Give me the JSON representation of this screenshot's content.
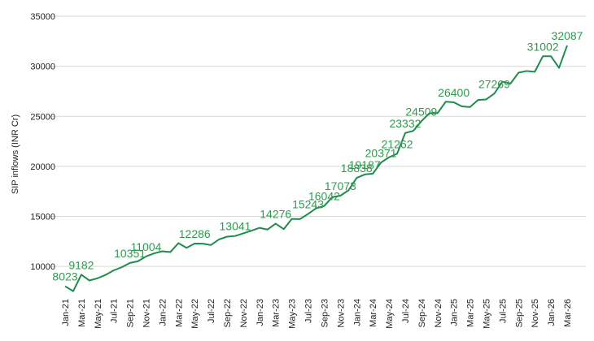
{
  "chart_data": {
    "type": "line",
    "y_label": "SIP inflows (INR Cr)",
    "categories": [
      "Jan-21",
      null,
      "Mar-21",
      null,
      "May-21",
      null,
      "Jul-21",
      null,
      "Sep-21",
      null,
      "Nov-21",
      null,
      "Jan-22",
      null,
      "Mar-22",
      null,
      "May-22",
      null,
      "Jul-22",
      null,
      "Sep-22",
      null,
      "Nov-22",
      null,
      "Jan-23",
      null,
      "Mar-23",
      null,
      "May-23",
      null,
      "Jul-23",
      null,
      "Sep-23",
      null,
      "Nov-23",
      null,
      "Jan-24",
      null,
      "Mar-24",
      null,
      "May-24",
      null,
      "Jul-24",
      null,
      "Sep-24",
      null,
      "Nov-24",
      null,
      "Jan-25",
      null,
      "Mar-25",
      null,
      "May-25",
      null,
      "Jul-25",
      null,
      "Sep-25",
      null,
      "Nov-25",
      null,
      "Jan-26",
      null,
      "Mar-26"
    ],
    "values": [
      8023,
      7528,
      9182,
      8596,
      8819,
      9156,
      9609,
      9923,
      10351,
      10519,
      11004,
      11305,
      11517,
      11438,
      12328,
      11863,
      12286,
      12276,
      12140,
      12693,
      12976,
      13041,
      13306,
      13573,
      13856,
      13686,
      14276,
      13728,
      14749,
      14734,
      15243,
      15814,
      16042,
      16928,
      17073,
      17610,
      18838,
      19187,
      19271,
      20371,
      20904,
      21262,
      23332,
      23547,
      24509,
      25323,
      25320,
      26459,
      26400,
      25999,
      25926,
      26632,
      26688,
      27269,
      28464,
      28265,
      29361,
      29529,
      29445,
      31002,
      31002,
      29845,
      32087
    ],
    "value_labels": [
      "8023",
      null,
      "9182",
      null,
      null,
      null,
      null,
      null,
      "10351",
      null,
      "11004",
      null,
      null,
      null,
      null,
      null,
      "12286",
      null,
      null,
      null,
      null,
      "13041",
      null,
      null,
      null,
      null,
      "14276",
      null,
      null,
      null,
      "15243",
      null,
      "16042",
      null,
      "17073",
      null,
      "18838",
      "19187",
      null,
      "20371",
      null,
      "21262",
      "23332",
      null,
      "24509",
      null,
      null,
      null,
      "26400",
      null,
      null,
      null,
      null,
      "27269",
      null,
      null,
      null,
      null,
      null,
      "31002",
      null,
      null,
      "32087"
    ],
    "color": "#1e8c4c",
    "ylim": [
      7500,
      35000
    ],
    "yticks": [
      10000,
      15000,
      20000,
      25000,
      30000,
      35000
    ],
    "grid": true
  }
}
